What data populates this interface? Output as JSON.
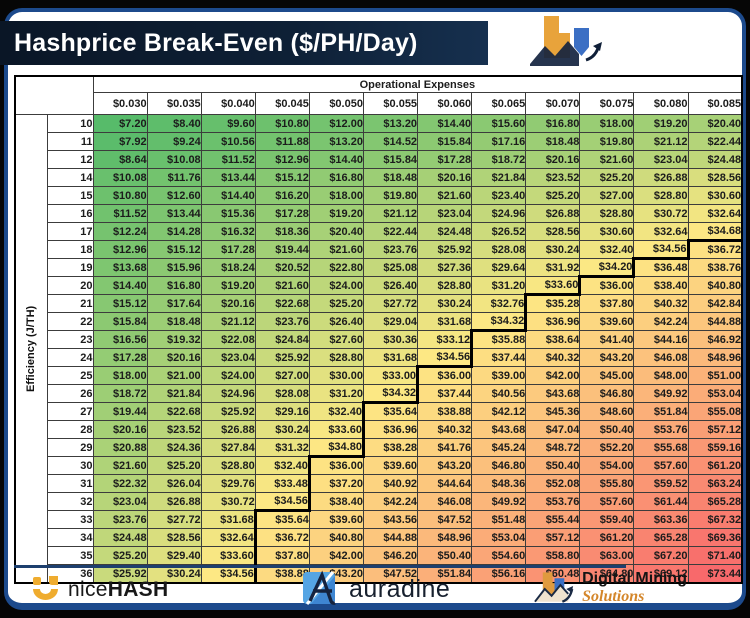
{
  "title": "Hashprice Break-Even ($/PH/Day)",
  "chart_data": {
    "type": "heatmap",
    "title": "Hashprice Break-Even ($/PH/Day)",
    "col_group_label": "Operational Expenses",
    "row_group_label": "Efficiency (J/TH)",
    "col_headers": [
      "$0.030",
      "$0.035",
      "$0.040",
      "$0.045",
      "$0.050",
      "$0.055",
      "$0.060",
      "$0.065",
      "$0.070",
      "$0.075",
      "$0.080",
      "$0.085"
    ],
    "row_headers": [
      10,
      11,
      12,
      14,
      15,
      16,
      17,
      18,
      19,
      20,
      21,
      22,
      23,
      24,
      25,
      26,
      27,
      28,
      29,
      30,
      31,
      32,
      33,
      34,
      35,
      36
    ],
    "value_prefix": "$",
    "values": [
      [
        7.2,
        8.4,
        9.6,
        10.8,
        12.0,
        13.2,
        14.4,
        15.6,
        16.8,
        18.0,
        19.2,
        20.4
      ],
      [
        7.92,
        9.24,
        10.56,
        11.88,
        13.2,
        14.52,
        15.84,
        17.16,
        18.48,
        19.8,
        21.12,
        22.44
      ],
      [
        8.64,
        10.08,
        11.52,
        12.96,
        14.4,
        15.84,
        17.28,
        18.72,
        20.16,
        21.6,
        23.04,
        24.48
      ],
      [
        10.08,
        11.76,
        13.44,
        15.12,
        16.8,
        18.48,
        20.16,
        21.84,
        23.52,
        25.2,
        26.88,
        28.56
      ],
      [
        10.8,
        12.6,
        14.4,
        16.2,
        18.0,
        19.8,
        21.6,
        23.4,
        25.2,
        27.0,
        28.8,
        30.6
      ],
      [
        11.52,
        13.44,
        15.36,
        17.28,
        19.2,
        21.12,
        23.04,
        24.96,
        26.88,
        28.8,
        30.72,
        32.64
      ],
      [
        12.24,
        14.28,
        16.32,
        18.36,
        20.4,
        22.44,
        24.48,
        26.52,
        28.56,
        30.6,
        32.64,
        34.68
      ],
      [
        12.96,
        15.12,
        17.28,
        19.44,
        21.6,
        23.76,
        25.92,
        28.08,
        30.24,
        32.4,
        34.56,
        36.72
      ],
      [
        13.68,
        15.96,
        18.24,
        20.52,
        22.8,
        25.08,
        27.36,
        29.64,
        31.92,
        34.2,
        36.48,
        38.76
      ],
      [
        14.4,
        16.8,
        19.2,
        21.6,
        24.0,
        26.4,
        28.8,
        31.2,
        33.6,
        36.0,
        38.4,
        40.8
      ],
      [
        15.12,
        17.64,
        20.16,
        22.68,
        25.2,
        27.72,
        30.24,
        32.76,
        35.28,
        37.8,
        40.32,
        42.84
      ],
      [
        15.84,
        18.48,
        21.12,
        23.76,
        26.4,
        29.04,
        31.68,
        34.32,
        36.96,
        39.6,
        42.24,
        44.88
      ],
      [
        16.56,
        19.32,
        22.08,
        24.84,
        27.6,
        30.36,
        33.12,
        35.88,
        38.64,
        41.4,
        44.16,
        46.92
      ],
      [
        17.28,
        20.16,
        23.04,
        25.92,
        28.8,
        31.68,
        34.56,
        37.44,
        40.32,
        43.2,
        46.08,
        48.96
      ],
      [
        18.0,
        21.0,
        24.0,
        27.0,
        30.0,
        33.0,
        36.0,
        39.0,
        42.0,
        45.0,
        48.0,
        51.0
      ],
      [
        18.72,
        21.84,
        24.96,
        28.08,
        31.2,
        34.32,
        37.44,
        40.56,
        43.68,
        46.8,
        49.92,
        53.04
      ],
      [
        19.44,
        22.68,
        25.92,
        29.16,
        32.4,
        35.64,
        38.88,
        42.12,
        45.36,
        48.6,
        51.84,
        55.08
      ],
      [
        20.16,
        23.52,
        26.88,
        30.24,
        33.6,
        36.96,
        40.32,
        43.68,
        47.04,
        50.4,
        53.76,
        57.12
      ],
      [
        20.88,
        24.36,
        27.84,
        31.32,
        34.8,
        38.28,
        41.76,
        45.24,
        48.72,
        52.2,
        55.68,
        59.16
      ],
      [
        21.6,
        25.2,
        28.8,
        32.4,
        36.0,
        39.6,
        43.2,
        46.8,
        50.4,
        54.0,
        57.6,
        61.2
      ],
      [
        22.32,
        26.04,
        29.76,
        33.48,
        37.2,
        40.92,
        44.64,
        48.36,
        52.08,
        55.8,
        59.52,
        63.24
      ],
      [
        23.04,
        26.88,
        30.72,
        34.56,
        38.4,
        42.24,
        46.08,
        49.92,
        53.76,
        57.6,
        61.44,
        65.28
      ],
      [
        23.76,
        27.72,
        31.68,
        35.64,
        39.6,
        43.56,
        47.52,
        51.48,
        55.44,
        59.4,
        63.36,
        67.32
      ],
      [
        24.48,
        28.56,
        32.64,
        36.72,
        40.8,
        44.88,
        48.96,
        53.04,
        57.12,
        61.2,
        65.28,
        69.36
      ],
      [
        25.2,
        29.4,
        33.6,
        37.8,
        42.0,
        46.2,
        50.4,
        54.6,
        58.8,
        63.0,
        67.2,
        71.4
      ],
      [
        25.92,
        30.24,
        34.56,
        38.88,
        43.2,
        47.52,
        51.84,
        56.16,
        60.48,
        64.8,
        69.12,
        73.44
      ]
    ],
    "break_even_start_col": [
      null,
      null,
      null,
      null,
      null,
      null,
      null,
      11,
      10,
      9,
      8,
      8,
      7,
      7,
      6,
      6,
      5,
      5,
      5,
      4,
      4,
      4,
      3,
      3,
      3,
      3
    ],
    "color_scale": {
      "min_value": 7.2,
      "mid_value": 34.5,
      "max_value": 73.44,
      "min_color": "#57BB6A",
      "mid_color": "#FDE884",
      "max_color": "#F8696B",
      "boundary_color": "#000000"
    }
  },
  "footer": {
    "nicehash": {
      "nice": "nice",
      "hash": "HASH"
    },
    "auradine": {
      "word": "auradine"
    },
    "dms": {
      "black": "Digital Mining",
      "orange": "Solutions"
    }
  },
  "colors": {
    "titlebar": "#0e2036",
    "card_border": "#1c4a8c",
    "underline": "#1d3f6e",
    "nicehash_orange": "#EFAC2F",
    "auradine_blue": "#55A5E4",
    "dms_orange": "#E09A3E",
    "dms_blue": "#3B6FC4"
  }
}
